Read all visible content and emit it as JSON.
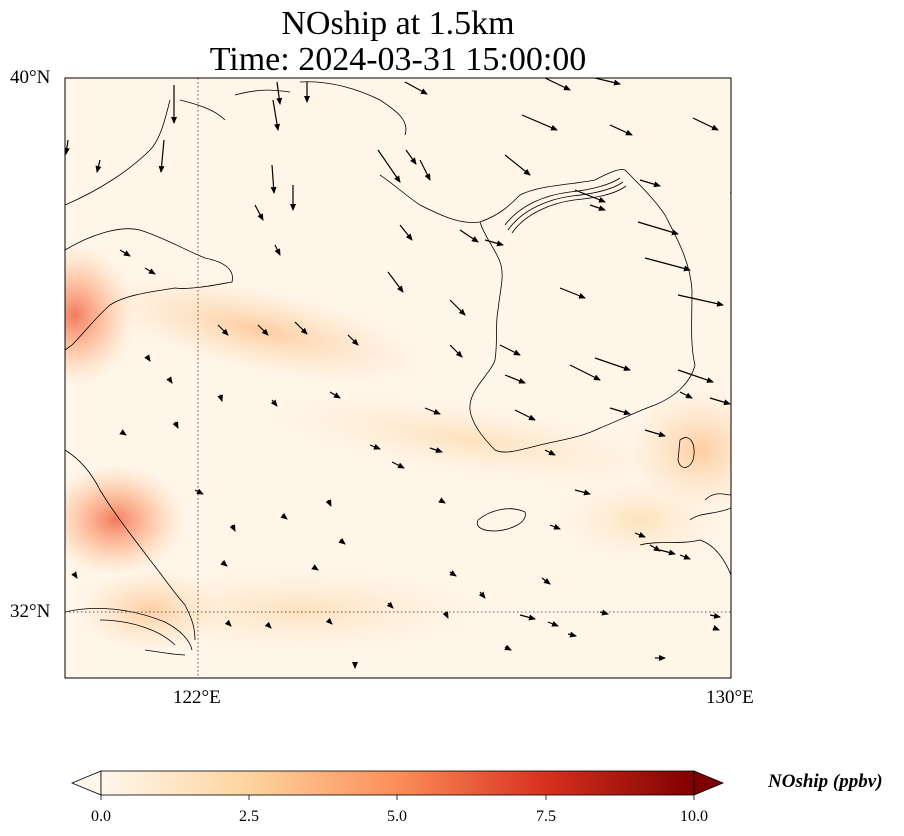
{
  "title": {
    "line1": "NOship at 1.5km",
    "line2": "Time: 2024-03-31 15:00:00"
  },
  "map": {
    "lon_range": [
      120,
      130
    ],
    "lat_range": [
      31,
      40
    ],
    "gridlines": {
      "lons": [
        122
      ],
      "lats": [
        32
      ]
    },
    "tick_labels": {
      "lat_top": "40°N",
      "lat_32": "32°N",
      "lon_122": "122°E",
      "lon_130": "130°E"
    }
  },
  "colorbar": {
    "label": "NOship (ppbv)",
    "ticks": [
      "0.0",
      "2.5",
      "5.0",
      "7.5",
      "10.0"
    ],
    "range": [
      0,
      10
    ],
    "colormap": "OrRd",
    "extend": "both",
    "colors": [
      "#fff7ec",
      "#fdd49e",
      "#fc8d59",
      "#d7301f",
      "#7f0000"
    ]
  }
}
